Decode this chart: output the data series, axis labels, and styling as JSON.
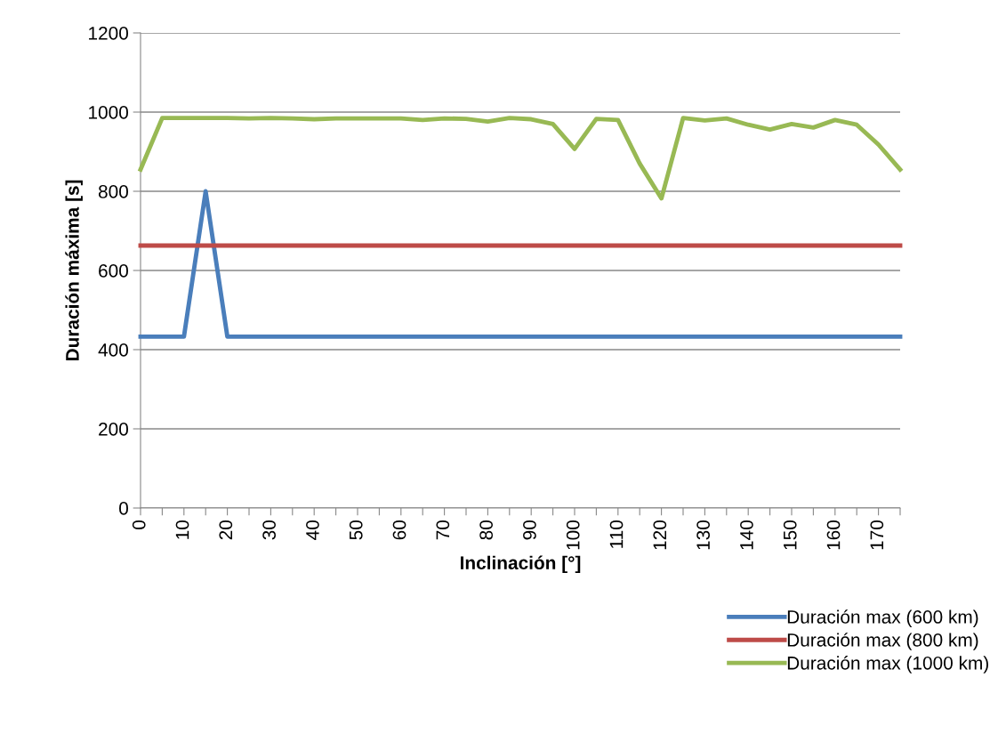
{
  "chart_data": {
    "type": "line",
    "xlabel": "Inclinación [°]",
    "ylabel": "Duración máxima [s]",
    "x": [
      0,
      5,
      10,
      15,
      20,
      25,
      30,
      35,
      40,
      45,
      50,
      55,
      60,
      65,
      70,
      75,
      80,
      85,
      90,
      95,
      100,
      105,
      110,
      115,
      120,
      125,
      130,
      135,
      140,
      145,
      150,
      155,
      160,
      165,
      170,
      175
    ],
    "xlim": [
      0,
      175
    ],
    "xticks": [
      0,
      {
        "value": 5,
        "label": null
      },
      10,
      {
        "value": 15,
        "label": null
      },
      20,
      {
        "value": 25,
        "label": null
      },
      30,
      {
        "value": 35,
        "label": null
      },
      40,
      {
        "value": 45,
        "label": null
      },
      50,
      {
        "value": 55,
        "label": null
      },
      60,
      {
        "value": 65,
        "label": null
      },
      70,
      {
        "value": 75,
        "label": null
      },
      80,
      {
        "value": 85,
        "label": null
      },
      90,
      {
        "value": 95,
        "label": null
      },
      100,
      {
        "value": 105,
        "label": null
      },
      110,
      {
        "value": 115,
        "label": null
      },
      120,
      {
        "value": 125,
        "label": null
      },
      130,
      {
        "value": 135,
        "label": null
      },
      140,
      {
        "value": 145,
        "label": null
      },
      150,
      {
        "value": 155,
        "label": null
      },
      160,
      {
        "value": 165,
        "label": null
      },
      170,
      {
        "value": 175,
        "label": null
      }
    ],
    "ylim": [
      0,
      1200
    ],
    "yticks": [
      0,
      200,
      400,
      600,
      800,
      1000,
      1200
    ],
    "grid": "y",
    "legend": "bottom right",
    "marker": "none",
    "line_style": "solid",
    "series": [
      {
        "name": "Duración max (600 km)",
        "color": "#4a7ebb",
        "values": [
          433,
          433,
          433,
          800,
          433,
          433,
          433,
          433,
          433,
          433,
          433,
          433,
          433,
          433,
          433,
          433,
          433,
          433,
          433,
          433,
          433,
          433,
          433,
          433,
          433,
          433,
          433,
          433,
          433,
          433,
          433,
          433,
          433,
          433,
          433,
          433
        ]
      },
      {
        "name": "Duración max (800 km)",
        "color": "#be4b48",
        "values": [
          663,
          663,
          663,
          663,
          663,
          663,
          663,
          663,
          663,
          663,
          663,
          663,
          663,
          663,
          663,
          663,
          663,
          663,
          663,
          663,
          663,
          663,
          663,
          663,
          663,
          663,
          663,
          663,
          663,
          663,
          663,
          663,
          663,
          663,
          663,
          663
        ]
      },
      {
        "name": "Duración max (1000 km)",
        "color": "#98b954",
        "values": [
          855,
          985,
          985,
          985,
          985,
          984,
          985,
          984,
          982,
          984,
          984,
          984,
          984,
          980,
          984,
          983,
          976,
          985,
          982,
          970,
          907,
          983,
          980,
          870,
          782,
          985,
          979,
          984,
          968,
          956,
          970,
          961,
          980,
          968,
          918,
          855
        ]
      }
    ]
  }
}
